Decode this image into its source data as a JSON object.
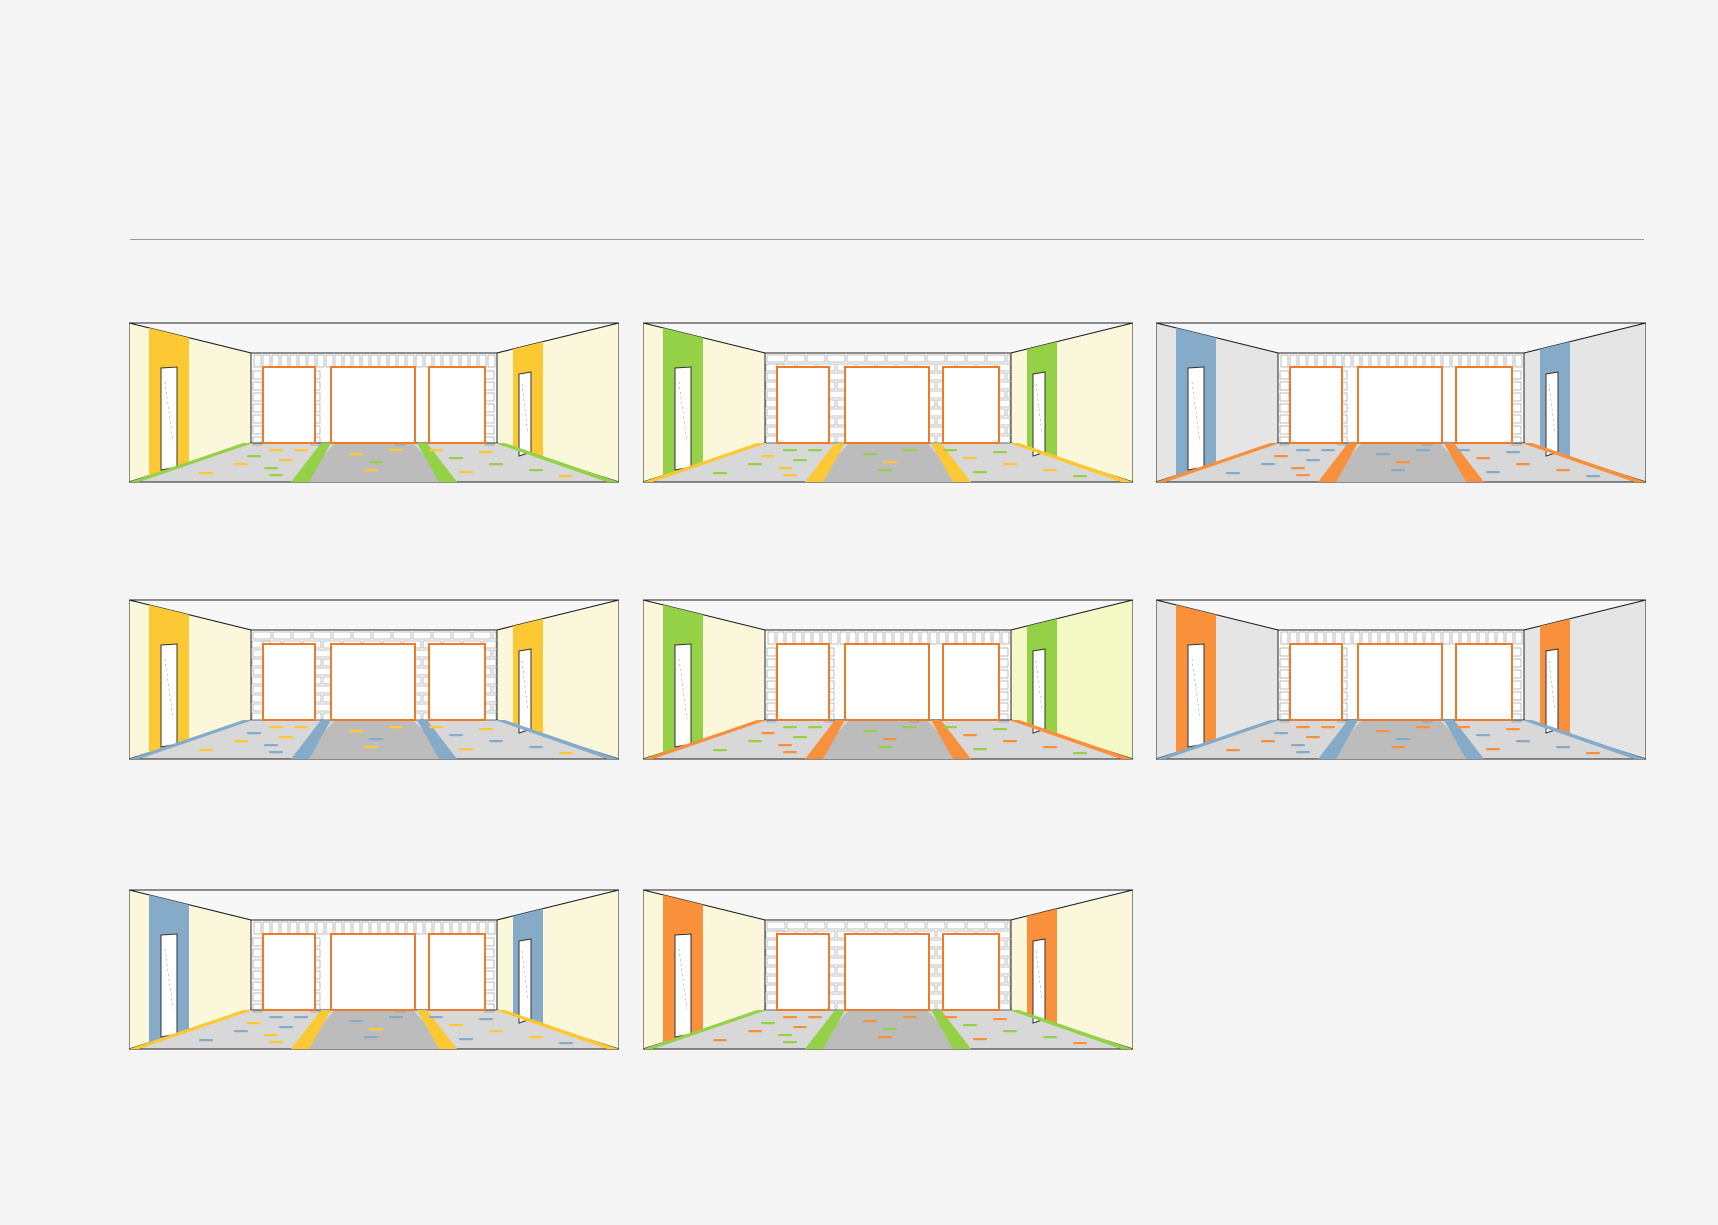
{
  "palette": {
    "yellow": "#fcc934",
    "green": "#95d146",
    "blue": "#86abc9",
    "orange": "#f9903c",
    "cream_wall": "#fbf7da",
    "grey_wall": "#e5e5e5",
    "lime_wall": "#f3f8c4",
    "frame_orange": "#ee7a2c",
    "floor_light": "#d8d8d8",
    "floor_dark": "#bcbcbc"
  },
  "panels": [
    {
      "wall_color": "#fbf7da",
      "accent": "#fcc934",
      "floor_accent": "#95d146",
      "back_style": "columns"
    },
    {
      "wall_color": "#fbf7da",
      "accent": "#95d146",
      "floor_accent": "#fcc934",
      "back_style": "bricks"
    },
    {
      "wall_color": "#e5e5e5",
      "accent": "#86abc9",
      "floor_accent": "#f9903c",
      "back_style": "columns"
    },
    {
      "wall_color": "#fbf7da",
      "accent": "#fcc934",
      "floor_accent": "#86abc9",
      "back_style": "bricks"
    },
    {
      "wall_color": "#fbf7da",
      "right_wall_color": "#f3f8c4",
      "accent": "#95d146",
      "floor_accent": "#f9903c",
      "back_style": "columns"
    },
    {
      "wall_color": "#e5e5e5",
      "accent": "#f9903c",
      "floor_accent": "#86abc9",
      "back_style": "columns"
    },
    {
      "wall_color": "#fbf7da",
      "accent": "#86abc9",
      "floor_accent": "#fcc934",
      "back_style": "columns"
    },
    {
      "wall_color": "#fbf7da",
      "accent": "#f9903c",
      "floor_accent": "#95d146",
      "back_style": "bricks"
    }
  ]
}
